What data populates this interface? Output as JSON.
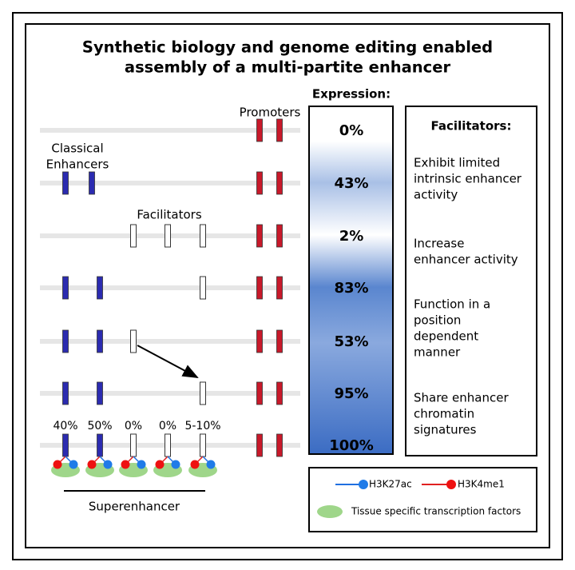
{
  "title": [
    "Synthetic biology and genome editing enabled",
    "assembly of a multi-partite enhancer"
  ],
  "labels": {
    "promoters": "Promoters",
    "classical_enhancers": [
      "Classical",
      "Enhancers"
    ],
    "facilitators": "Facilitators",
    "superenhancer": "Superenhancer"
  },
  "expression": {
    "title": "Expression:",
    "values": [
      "0%",
      "43%",
      "2%",
      "83%",
      "53%",
      "95%",
      "100%"
    ]
  },
  "superenhancer_activity": [
    "40%",
    "50%",
    "0%",
    "0%",
    "5-10%"
  ],
  "facilitators_panel": {
    "title": "Facilitators:",
    "items": [
      [
        "Exhibit limited",
        "intrinsic enhancer",
        "activity"
      ],
      [
        "Increase",
        "enhancer activity"
      ],
      [
        "Function in a",
        "position",
        "dependent",
        "manner"
      ],
      [
        "Share enhancer",
        "chromatin",
        "signatures"
      ]
    ]
  },
  "legend": {
    "h3k27ac": "H3K27ac",
    "h3k4me1": "H3K4me1",
    "tf": "Tissue specific transcription factors"
  }
}
